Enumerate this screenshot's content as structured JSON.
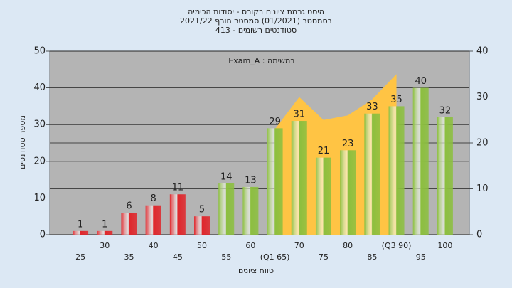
{
  "chart_data": {
    "type": "bar",
    "title": "היסטוגרמת ציונים בקורס - יסודות הכימיה",
    "subtitle": "בסמסטר  (01/2021)  סמסטר חורף 2021/22",
    "subtitle2": "סטודנטים רשומים - 413",
    "annotation": "במשימה : Exam_A",
    "y_label": "מספר סטודנטים",
    "x_label": "טווח ציונים",
    "categories": [
      "25",
      "30",
      "35",
      "40",
      "45",
      "50",
      "55",
      "60",
      "(Q1 65)",
      "70",
      "75",
      "80",
      "85",
      "(Q3 90)",
      "95",
      "100"
    ],
    "series": [
      {
        "values": [
          1,
          1,
          6,
          8,
          11,
          5,
          14,
          13,
          29,
          31,
          21,
          23,
          33,
          35,
          40,
          32
        ],
        "colors": [
          "#e0262b",
          "#e0262b",
          "#e0262b",
          "#e0262b",
          "#e0262b",
          "#e0262b",
          "#8cbf3f",
          "#8cbf3f",
          "#8cbf3f",
          "#8cbf3f",
          "#8cbf3f",
          "#8cbf3f",
          "#8cbf3f",
          "#8cbf3f",
          "#8cbf3f",
          "#8cbf3f"
        ]
      },
      {
        "type": "area",
        "axis": "y2",
        "color": "#ffc444",
        "values": [
          null,
          null,
          null,
          null,
          null,
          null,
          null,
          null,
          23,
          30,
          25,
          26,
          29.5,
          35,
          null,
          null
        ]
      }
    ],
    "ylim": [
      0,
      50
    ],
    "yticks": [
      0,
      10,
      20,
      30,
      40,
      50
    ],
    "y2lim": [
      0,
      40
    ],
    "y2ticks": [
      0,
      10,
      20,
      30,
      40
    ],
    "grid": true
  }
}
